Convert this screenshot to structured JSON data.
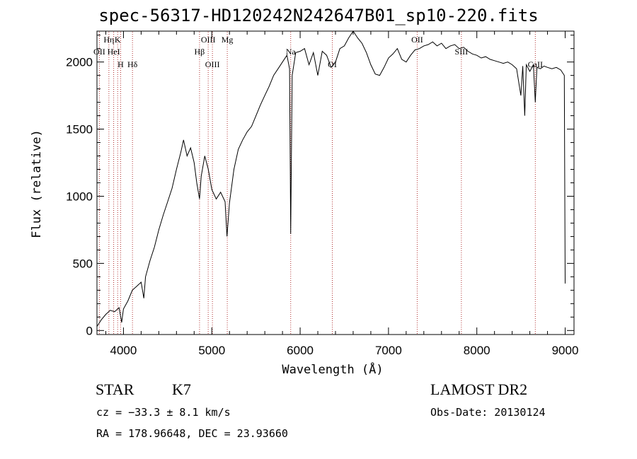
{
  "title": "spec-56317-HD120242N242647B01_sp10-220.fits",
  "info": {
    "object_class": "STAR",
    "subclass": "K7",
    "survey": "LAMOST DR2",
    "cz": "cz = −33.3 ± 8.1 km/s",
    "obs_date": "Obs-Date: 20130124",
    "coords": "RA = 178.96648, DEC =  23.93660"
  },
  "chart_data": {
    "type": "line",
    "xlabel": "Wavelength (Å)",
    "ylabel": "Flux (relative)",
    "xlim": [
      3700,
      9100
    ],
    "ylim": [
      -30,
      2230
    ],
    "x_ticks": [
      4000,
      5000,
      6000,
      7000,
      8000,
      9000
    ],
    "y_ticks": [
      0,
      500,
      1000,
      1500,
      2000
    ],
    "series": [
      {
        "values": [
          [
            3700,
            30
          ],
          [
            3750,
            80
          ],
          [
            3800,
            120
          ],
          [
            3850,
            150
          ],
          [
            3900,
            140
          ],
          [
            3950,
            170
          ],
          [
            3980,
            60
          ],
          [
            4000,
            160
          ],
          [
            4050,
            220
          ],
          [
            4100,
            300
          ],
          [
            4150,
            330
          ],
          [
            4200,
            360
          ],
          [
            4230,
            240
          ],
          [
            4250,
            400
          ],
          [
            4300,
            520
          ],
          [
            4350,
            620
          ],
          [
            4400,
            750
          ],
          [
            4450,
            860
          ],
          [
            4500,
            960
          ],
          [
            4550,
            1060
          ],
          [
            4600,
            1200
          ],
          [
            4650,
            1330
          ],
          [
            4680,
            1420
          ],
          [
            4720,
            1300
          ],
          [
            4760,
            1360
          ],
          [
            4800,
            1250
          ],
          [
            4830,
            1100
          ],
          [
            4861,
            980
          ],
          [
            4880,
            1150
          ],
          [
            4920,
            1300
          ],
          [
            4960,
            1200
          ],
          [
            5000,
            1050
          ],
          [
            5050,
            980
          ],
          [
            5100,
            1030
          ],
          [
            5150,
            960
          ],
          [
            5172,
            700
          ],
          [
            5200,
            950
          ],
          [
            5250,
            1200
          ],
          [
            5300,
            1350
          ],
          [
            5350,
            1420
          ],
          [
            5400,
            1480
          ],
          [
            5450,
            1520
          ],
          [
            5500,
            1600
          ],
          [
            5550,
            1680
          ],
          [
            5600,
            1750
          ],
          [
            5650,
            1820
          ],
          [
            5700,
            1900
          ],
          [
            5750,
            1950
          ],
          [
            5800,
            2000
          ],
          [
            5850,
            2050
          ],
          [
            5880,
            1950
          ],
          [
            5893,
            720
          ],
          [
            5910,
            1900
          ],
          [
            5950,
            2070
          ],
          [
            6000,
            2080
          ],
          [
            6050,
            2100
          ],
          [
            6100,
            1980
          ],
          [
            6150,
            2070
          ],
          [
            6200,
            1900
          ],
          [
            6250,
            2080
          ],
          [
            6300,
            2050
          ],
          [
            6350,
            1960
          ],
          [
            6400,
            2000
          ],
          [
            6450,
            2100
          ],
          [
            6500,
            2120
          ],
          [
            6550,
            2180
          ],
          [
            6600,
            2250
          ],
          [
            6650,
            2180
          ],
          [
            6700,
            2140
          ],
          [
            6750,
            2070
          ],
          [
            6800,
            1980
          ],
          [
            6850,
            1910
          ],
          [
            6900,
            1900
          ],
          [
            6950,
            1960
          ],
          [
            7000,
            2030
          ],
          [
            7050,
            2060
          ],
          [
            7100,
            2100
          ],
          [
            7150,
            2020
          ],
          [
            7200,
            2000
          ],
          [
            7250,
            2050
          ],
          [
            7300,
            2090
          ],
          [
            7350,
            2100
          ],
          [
            7400,
            2120
          ],
          [
            7450,
            2130
          ],
          [
            7500,
            2150
          ],
          [
            7550,
            2120
          ],
          [
            7600,
            2140
          ],
          [
            7650,
            2100
          ],
          [
            7700,
            2120
          ],
          [
            7750,
            2130
          ],
          [
            7800,
            2100
          ],
          [
            7850,
            2110
          ],
          [
            7900,
            2080
          ],
          [
            7950,
            2060
          ],
          [
            8000,
            2050
          ],
          [
            8050,
            2030
          ],
          [
            8100,
            2040
          ],
          [
            8150,
            2020
          ],
          [
            8200,
            2010
          ],
          [
            8250,
            2000
          ],
          [
            8300,
            1990
          ],
          [
            8350,
            2000
          ],
          [
            8400,
            1980
          ],
          [
            8450,
            1950
          ],
          [
            8498,
            1750
          ],
          [
            8520,
            1970
          ],
          [
            8542,
            1600
          ],
          [
            8560,
            1980
          ],
          [
            8600,
            1930
          ],
          [
            8640,
            1980
          ],
          [
            8662,
            1700
          ],
          [
            8680,
            1960
          ],
          [
            8720,
            1950
          ],
          [
            8760,
            1970
          ],
          [
            8800,
            1960
          ],
          [
            8850,
            1950
          ],
          [
            8900,
            1960
          ],
          [
            8950,
            1940
          ],
          [
            8990,
            1900
          ],
          [
            9000,
            350
          ]
        ]
      }
    ],
    "lines": [
      {
        "label": "Hη",
        "x": 3835
      },
      {
        "label": "OII",
        "x": 3727
      },
      {
        "label": "H",
        "x": 3968
      },
      {
        "label": "K",
        "x": 3934
      },
      {
        "label": "HeI",
        "x": 3889
      },
      {
        "label": "Hδ",
        "x": 4102
      },
      {
        "label": "OIII",
        "x": 4959
      },
      {
        "label": "Hβ",
        "x": 4861
      },
      {
        "label": "OIII",
        "x": 5007
      },
      {
        "label": "Mg",
        "x": 5175
      },
      {
        "label": "Na",
        "x": 5893
      },
      {
        "label": "OI",
        "x": 6364
      },
      {
        "label": "OII",
        "x": 7325
      },
      {
        "label": "SIII",
        "x": 7825
      },
      {
        "label": "CaII",
        "x": 8662
      }
    ]
  }
}
